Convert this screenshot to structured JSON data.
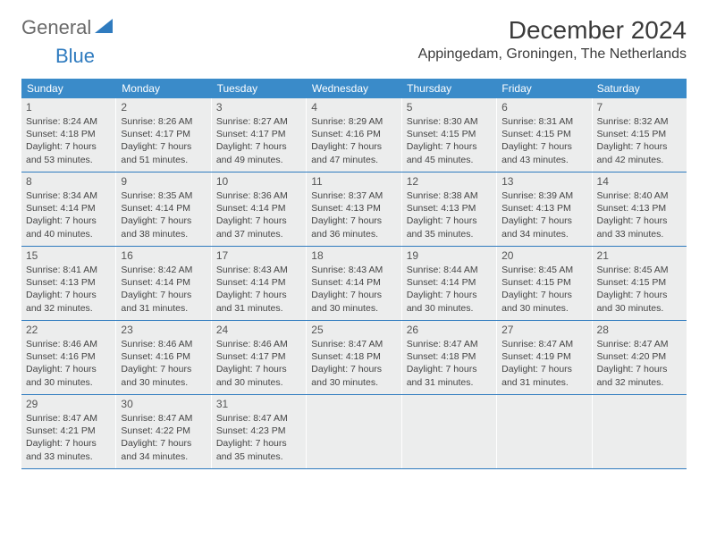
{
  "logo": {
    "text1": "General",
    "text2": "Blue"
  },
  "title": "December 2024",
  "location": "Appingedam, Groningen, The Netherlands",
  "colors": {
    "header_bg": "#3a8bc9",
    "header_text": "#ffffff",
    "cell_bg": "#eceded",
    "week_divider": "#2f7bbf",
    "logo_gray": "#6a6a6a",
    "logo_blue": "#2f7bbf",
    "text": "#444444"
  },
  "day_headers": [
    "Sunday",
    "Monday",
    "Tuesday",
    "Wednesday",
    "Thursday",
    "Friday",
    "Saturday"
  ],
  "weeks": [
    [
      {
        "num": "1",
        "sunrise": "Sunrise: 8:24 AM",
        "sunset": "Sunset: 4:18 PM",
        "daylight1": "Daylight: 7 hours",
        "daylight2": "and 53 minutes."
      },
      {
        "num": "2",
        "sunrise": "Sunrise: 8:26 AM",
        "sunset": "Sunset: 4:17 PM",
        "daylight1": "Daylight: 7 hours",
        "daylight2": "and 51 minutes."
      },
      {
        "num": "3",
        "sunrise": "Sunrise: 8:27 AM",
        "sunset": "Sunset: 4:17 PM",
        "daylight1": "Daylight: 7 hours",
        "daylight2": "and 49 minutes."
      },
      {
        "num": "4",
        "sunrise": "Sunrise: 8:29 AM",
        "sunset": "Sunset: 4:16 PM",
        "daylight1": "Daylight: 7 hours",
        "daylight2": "and 47 minutes."
      },
      {
        "num": "5",
        "sunrise": "Sunrise: 8:30 AM",
        "sunset": "Sunset: 4:15 PM",
        "daylight1": "Daylight: 7 hours",
        "daylight2": "and 45 minutes."
      },
      {
        "num": "6",
        "sunrise": "Sunrise: 8:31 AM",
        "sunset": "Sunset: 4:15 PM",
        "daylight1": "Daylight: 7 hours",
        "daylight2": "and 43 minutes."
      },
      {
        "num": "7",
        "sunrise": "Sunrise: 8:32 AM",
        "sunset": "Sunset: 4:15 PM",
        "daylight1": "Daylight: 7 hours",
        "daylight2": "and 42 minutes."
      }
    ],
    [
      {
        "num": "8",
        "sunrise": "Sunrise: 8:34 AM",
        "sunset": "Sunset: 4:14 PM",
        "daylight1": "Daylight: 7 hours",
        "daylight2": "and 40 minutes."
      },
      {
        "num": "9",
        "sunrise": "Sunrise: 8:35 AM",
        "sunset": "Sunset: 4:14 PM",
        "daylight1": "Daylight: 7 hours",
        "daylight2": "and 38 minutes."
      },
      {
        "num": "10",
        "sunrise": "Sunrise: 8:36 AM",
        "sunset": "Sunset: 4:14 PM",
        "daylight1": "Daylight: 7 hours",
        "daylight2": "and 37 minutes."
      },
      {
        "num": "11",
        "sunrise": "Sunrise: 8:37 AM",
        "sunset": "Sunset: 4:13 PM",
        "daylight1": "Daylight: 7 hours",
        "daylight2": "and 36 minutes."
      },
      {
        "num": "12",
        "sunrise": "Sunrise: 8:38 AM",
        "sunset": "Sunset: 4:13 PM",
        "daylight1": "Daylight: 7 hours",
        "daylight2": "and 35 minutes."
      },
      {
        "num": "13",
        "sunrise": "Sunrise: 8:39 AM",
        "sunset": "Sunset: 4:13 PM",
        "daylight1": "Daylight: 7 hours",
        "daylight2": "and 34 minutes."
      },
      {
        "num": "14",
        "sunrise": "Sunrise: 8:40 AM",
        "sunset": "Sunset: 4:13 PM",
        "daylight1": "Daylight: 7 hours",
        "daylight2": "and 33 minutes."
      }
    ],
    [
      {
        "num": "15",
        "sunrise": "Sunrise: 8:41 AM",
        "sunset": "Sunset: 4:13 PM",
        "daylight1": "Daylight: 7 hours",
        "daylight2": "and 32 minutes."
      },
      {
        "num": "16",
        "sunrise": "Sunrise: 8:42 AM",
        "sunset": "Sunset: 4:14 PM",
        "daylight1": "Daylight: 7 hours",
        "daylight2": "and 31 minutes."
      },
      {
        "num": "17",
        "sunrise": "Sunrise: 8:43 AM",
        "sunset": "Sunset: 4:14 PM",
        "daylight1": "Daylight: 7 hours",
        "daylight2": "and 31 minutes."
      },
      {
        "num": "18",
        "sunrise": "Sunrise: 8:43 AM",
        "sunset": "Sunset: 4:14 PM",
        "daylight1": "Daylight: 7 hours",
        "daylight2": "and 30 minutes."
      },
      {
        "num": "19",
        "sunrise": "Sunrise: 8:44 AM",
        "sunset": "Sunset: 4:14 PM",
        "daylight1": "Daylight: 7 hours",
        "daylight2": "and 30 minutes."
      },
      {
        "num": "20",
        "sunrise": "Sunrise: 8:45 AM",
        "sunset": "Sunset: 4:15 PM",
        "daylight1": "Daylight: 7 hours",
        "daylight2": "and 30 minutes."
      },
      {
        "num": "21",
        "sunrise": "Sunrise: 8:45 AM",
        "sunset": "Sunset: 4:15 PM",
        "daylight1": "Daylight: 7 hours",
        "daylight2": "and 30 minutes."
      }
    ],
    [
      {
        "num": "22",
        "sunrise": "Sunrise: 8:46 AM",
        "sunset": "Sunset: 4:16 PM",
        "daylight1": "Daylight: 7 hours",
        "daylight2": "and 30 minutes."
      },
      {
        "num": "23",
        "sunrise": "Sunrise: 8:46 AM",
        "sunset": "Sunset: 4:16 PM",
        "daylight1": "Daylight: 7 hours",
        "daylight2": "and 30 minutes."
      },
      {
        "num": "24",
        "sunrise": "Sunrise: 8:46 AM",
        "sunset": "Sunset: 4:17 PM",
        "daylight1": "Daylight: 7 hours",
        "daylight2": "and 30 minutes."
      },
      {
        "num": "25",
        "sunrise": "Sunrise: 8:47 AM",
        "sunset": "Sunset: 4:18 PM",
        "daylight1": "Daylight: 7 hours",
        "daylight2": "and 30 minutes."
      },
      {
        "num": "26",
        "sunrise": "Sunrise: 8:47 AM",
        "sunset": "Sunset: 4:18 PM",
        "daylight1": "Daylight: 7 hours",
        "daylight2": "and 31 minutes."
      },
      {
        "num": "27",
        "sunrise": "Sunrise: 8:47 AM",
        "sunset": "Sunset: 4:19 PM",
        "daylight1": "Daylight: 7 hours",
        "daylight2": "and 31 minutes."
      },
      {
        "num": "28",
        "sunrise": "Sunrise: 8:47 AM",
        "sunset": "Sunset: 4:20 PM",
        "daylight1": "Daylight: 7 hours",
        "daylight2": "and 32 minutes."
      }
    ],
    [
      {
        "num": "29",
        "sunrise": "Sunrise: 8:47 AM",
        "sunset": "Sunset: 4:21 PM",
        "daylight1": "Daylight: 7 hours",
        "daylight2": "and 33 minutes."
      },
      {
        "num": "30",
        "sunrise": "Sunrise: 8:47 AM",
        "sunset": "Sunset: 4:22 PM",
        "daylight1": "Daylight: 7 hours",
        "daylight2": "and 34 minutes."
      },
      {
        "num": "31",
        "sunrise": "Sunrise: 8:47 AM",
        "sunset": "Sunset: 4:23 PM",
        "daylight1": "Daylight: 7 hours",
        "daylight2": "and 35 minutes."
      },
      null,
      null,
      null,
      null
    ]
  ]
}
